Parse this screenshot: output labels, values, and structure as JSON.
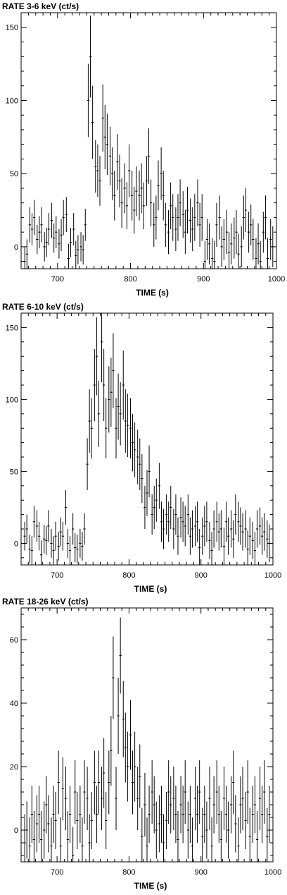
{
  "chart_data": [
    {
      "type": "scatter",
      "title": "RATE 3-6 keV (ct/s)",
      "xlabel": "TIME (s)",
      "ylabel": "",
      "xlim": [
        650,
        1000
      ],
      "ylim": [
        -15,
        160
      ],
      "xticks": [
        700,
        800,
        900,
        1000
      ],
      "yticks": [
        0,
        50,
        100,
        150
      ],
      "x": [
        655,
        658,
        662,
        665,
        668,
        672,
        675,
        678,
        682,
        685,
        688,
        692,
        695,
        698,
        702,
        705,
        708,
        712,
        715,
        718,
        722,
        725,
        728,
        732,
        735,
        738,
        742,
        745,
        748,
        752,
        755,
        758,
        762,
        765,
        768,
        772,
        775,
        778,
        782,
        785,
        788,
        792,
        795,
        798,
        802,
        805,
        808,
        812,
        815,
        818,
        822,
        825,
        828,
        832,
        835,
        838,
        842,
        845,
        848,
        852,
        855,
        858,
        862,
        865,
        868,
        872,
        875,
        878,
        882,
        885,
        888,
        892,
        895,
        898,
        902,
        905,
        908,
        912,
        915,
        918,
        922,
        925,
        928,
        932,
        935,
        938,
        942,
        945,
        948,
        952,
        955,
        958,
        962,
        965,
        968,
        972,
        975,
        978,
        982,
        985,
        988,
        992,
        995
      ],
      "y": [
        -10,
        -5,
        15,
        12,
        20,
        5,
        10,
        15,
        0,
        3,
        12,
        18,
        6,
        10,
        2,
        8,
        20,
        22,
        -8,
        3,
        12,
        -6,
        -2,
        0,
        -2,
        15,
        100,
        130,
        85,
        55,
        52,
        45,
        88,
        75,
        70,
        62,
        50,
        35,
        58,
        45,
        30,
        40,
        28,
        52,
        35,
        25,
        38,
        35,
        40,
        28,
        45,
        62,
        30,
        15,
        20,
        42,
        50,
        35,
        15,
        10,
        28,
        20,
        12,
        20,
        30,
        22,
        10,
        25,
        18,
        12,
        20,
        30,
        15,
        20,
        -10,
        5,
        2,
        -8,
        -10,
        15,
        20,
        0,
        5,
        10,
        -4,
        2,
        6,
        10,
        -5,
        0,
        20,
        25,
        10,
        15,
        5,
        -8,
        2,
        -10,
        10,
        20,
        -8,
        5,
        0
      ],
      "err": [
        10,
        10,
        12,
        11,
        12,
        10,
        11,
        12,
        10,
        10,
        11,
        12,
        10,
        11,
        10,
        11,
        12,
        12,
        10,
        10,
        11,
        10,
        10,
        10,
        10,
        11,
        25,
        28,
        25,
        18,
        18,
        17,
        23,
        22,
        21,
        20,
        18,
        17,
        19,
        18,
        17,
        17,
        16,
        18,
        17,
        16,
        17,
        17,
        17,
        16,
        17,
        19,
        16,
        15,
        15,
        17,
        18,
        17,
        15,
        15,
        16,
        16,
        15,
        16,
        16,
        16,
        15,
        16,
        15,
        15,
        16,
        16,
        15,
        16,
        14,
        14,
        14,
        14,
        14,
        15,
        15,
        14,
        14,
        15,
        14,
        14,
        14,
        15,
        14,
        14,
        15,
        15,
        14,
        14,
        14,
        14,
        14,
        14,
        14,
        15,
        14,
        14,
        14
      ]
    },
    {
      "type": "scatter",
      "title": "RATE 6-10 keV (ct/s)",
      "xlabel": "TIME (s)",
      "ylabel": "",
      "xlim": [
        650,
        1000
      ],
      "ylim": [
        -15,
        160
      ],
      "xticks": [
        700,
        800,
        900,
        1000
      ],
      "yticks": [
        0,
        50,
        100,
        150
      ],
      "x": [
        655,
        658,
        662,
        665,
        668,
        672,
        675,
        678,
        682,
        685,
        688,
        692,
        695,
        698,
        702,
        705,
        708,
        712,
        715,
        718,
        722,
        725,
        728,
        732,
        735,
        738,
        742,
        745,
        748,
        752,
        755,
        758,
        762,
        765,
        768,
        772,
        775,
        778,
        782,
        785,
        788,
        792,
        795,
        798,
        802,
        805,
        808,
        812,
        815,
        818,
        822,
        825,
        828,
        832,
        835,
        838,
        842,
        845,
        848,
        852,
        855,
        858,
        862,
        865,
        868,
        872,
        875,
        878,
        882,
        885,
        888,
        892,
        895,
        898,
        902,
        905,
        908,
        912,
        915,
        918,
        922,
        925,
        928,
        932,
        935,
        938,
        942,
        945,
        948,
        952,
        955,
        958,
        962,
        965,
        968,
        972,
        975,
        978,
        982,
        985,
        988,
        992,
        995
      ],
      "y": [
        5,
        10,
        -4,
        -5,
        15,
        12,
        5,
        -8,
        3,
        2,
        12,
        0,
        -5,
        5,
        -2,
        8,
        5,
        25,
        0,
        -5,
        10,
        -3,
        -4,
        0,
        -2,
        10,
        55,
        85,
        80,
        110,
        130,
        90,
        140,
        110,
        80,
        100,
        105,
        120,
        80,
        95,
        90,
        110,
        85,
        82,
        80,
        70,
        65,
        60,
        55,
        45,
        25,
        35,
        50,
        20,
        25,
        30,
        40,
        15,
        10,
        20,
        15,
        25,
        10,
        20,
        5,
        18,
        15,
        12,
        20,
        5,
        10,
        12,
        15,
        -3,
        5,
        12,
        15,
        2,
        -5,
        10,
        15,
        8,
        10,
        -2,
        15,
        5,
        10,
        3,
        20,
        15,
        12,
        8,
        10,
        -4,
        5,
        2,
        -5,
        10,
        12,
        5,
        8,
        3,
        0
      ],
      "err": [
        10,
        10,
        10,
        10,
        11,
        11,
        10,
        10,
        10,
        10,
        11,
        10,
        10,
        10,
        10,
        10,
        10,
        12,
        10,
        10,
        11,
        10,
        10,
        10,
        10,
        11,
        18,
        22,
        21,
        25,
        27,
        23,
        28,
        25,
        21,
        23,
        24,
        26,
        21,
        23,
        22,
        24,
        22,
        22,
        21,
        20,
        19,
        19,
        18,
        17,
        15,
        16,
        18,
        14,
        15,
        15,
        16,
        14,
        14,
        14,
        14,
        15,
        14,
        14,
        13,
        14,
        14,
        14,
        14,
        13,
        13,
        14,
        14,
        13,
        13,
        14,
        14,
        13,
        13,
        13,
        14,
        13,
        13,
        13,
        14,
        13,
        13,
        13,
        14,
        14,
        13,
        13,
        13,
        13,
        13,
        13,
        13,
        13,
        13,
        13,
        13,
        13,
        13
      ]
    },
    {
      "type": "scatter",
      "title": "RATE 18-26 keV  (ct/s)",
      "xlabel": "TIME (s)",
      "ylabel": "",
      "xlim": [
        650,
        1000
      ],
      "ylim": [
        -10,
        70
      ],
      "xticks": [
        700,
        800,
        900,
        1000
      ],
      "yticks": [
        0,
        20,
        40,
        60
      ],
      "x": [
        655,
        658,
        662,
        665,
        668,
        672,
        675,
        678,
        682,
        685,
        688,
        692,
        695,
        698,
        702,
        705,
        708,
        712,
        715,
        718,
        722,
        725,
        728,
        732,
        735,
        738,
        742,
        745,
        748,
        752,
        755,
        758,
        762,
        765,
        768,
        772,
        775,
        778,
        782,
        785,
        788,
        792,
        795,
        798,
        802,
        805,
        808,
        812,
        815,
        818,
        822,
        825,
        828,
        832,
        835,
        838,
        842,
        845,
        848,
        852,
        855,
        858,
        862,
        865,
        868,
        872,
        875,
        878,
        882,
        885,
        888,
        892,
        895,
        898,
        902,
        905,
        908,
        912,
        915,
        918,
        922,
        925,
        928,
        932,
        935,
        938,
        942,
        945,
        948,
        952,
        955,
        958,
        962,
        965,
        968,
        972,
        975,
        978,
        982,
        985,
        988,
        992,
        995
      ],
      "y": [
        -4,
        0,
        -5,
        5,
        -3,
        2,
        5,
        -3,
        0,
        8,
        2,
        -5,
        5,
        3,
        15,
        -5,
        13,
        10,
        -3,
        5,
        -8,
        12,
        3,
        5,
        -5,
        12,
        10,
        -4,
        3,
        15,
        5,
        15,
        10,
        18,
        3,
        15,
        25,
        48,
        10,
        36,
        55,
        35,
        26,
        20,
        30,
        15,
        20,
        10,
        17,
        -2,
        8,
        -5,
        5,
        12,
        8,
        0,
        2,
        5,
        -4,
        3,
        12,
        8,
        10,
        5,
        -3,
        8,
        5,
        12,
        0,
        5,
        -5,
        10,
        5,
        12,
        -2,
        5,
        0,
        10,
        -5,
        8,
        12,
        5,
        -3,
        10,
        5,
        0,
        8,
        15,
        2,
        -5,
        8,
        10,
        3,
        12,
        -2,
        5,
        8,
        -3,
        10,
        5,
        12,
        -2,
        5
      ],
      "err": [
        9,
        9,
        9,
        9,
        9,
        9,
        9,
        9,
        9,
        9,
        9,
        9,
        9,
        9,
        10,
        9,
        10,
        10,
        9,
        9,
        9,
        10,
        9,
        9,
        9,
        10,
        10,
        9,
        9,
        10,
        9,
        10,
        10,
        11,
        9,
        10,
        11,
        13,
        10,
        12,
        12,
        12,
        11,
        11,
        11,
        10,
        11,
        10,
        10,
        9,
        10,
        9,
        9,
        10,
        9,
        9,
        9,
        9,
        9,
        9,
        10,
        9,
        10,
        9,
        9,
        9,
        9,
        10,
        9,
        9,
        9,
        10,
        9,
        10,
        9,
        9,
        9,
        10,
        9,
        9,
        10,
        9,
        9,
        10,
        9,
        9,
        9,
        10,
        9,
        9,
        9,
        10,
        9,
        10,
        9,
        9,
        9,
        9,
        10,
        9,
        10,
        9,
        9
      ]
    }
  ]
}
